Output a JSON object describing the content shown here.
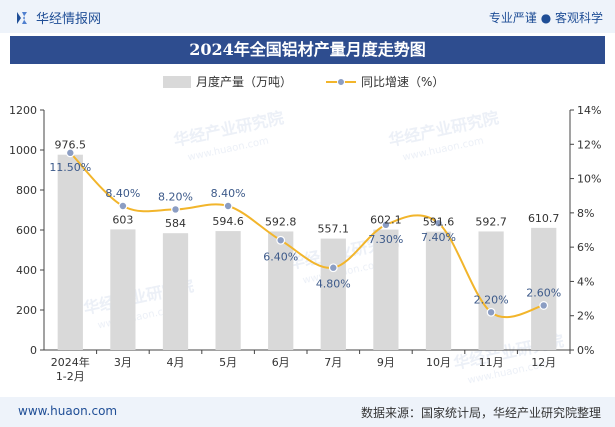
{
  "header": {
    "brand": "华经情报网",
    "slogan": "专业严谨 ● 客观科学"
  },
  "title": "2024年全国铝材产量月度走势图",
  "footer": {
    "website": "www.huaon.com",
    "source": "数据来源：国家统计局，华经产业研究院整理"
  },
  "watermark": {
    "text": "华经产业研究院",
    "url": "www.huaon.com"
  },
  "colors": {
    "bar": "#d9d9d9",
    "line": "#f2b52b",
    "marker": "#8b9dc3",
    "title_bg": "#2e4d8f"
  },
  "chart_data": {
    "type": "bar+line",
    "categories": [
      "2024年\n1-2月",
      "3月",
      "4月",
      "5月",
      "6月",
      "7月",
      "9月",
      "10月",
      "11月",
      "12月"
    ],
    "series": [
      {
        "name": "月度产量（万吨）",
        "type": "bar",
        "axis": "left",
        "values": [
          976.5,
          603,
          584,
          594.6,
          592.8,
          557.1,
          602.1,
          591.6,
          592.7,
          610.7
        ],
        "labels": [
          "976.5",
          "603",
          "584",
          "594.6",
          "592.8",
          "557.1",
          "602.1",
          "591.6",
          "592.7",
          "610.7"
        ]
      },
      {
        "name": "同比增速（%）",
        "type": "line",
        "axis": "right",
        "values": [
          11.5,
          8.4,
          8.2,
          8.4,
          6.4,
          4.8,
          7.3,
          7.4,
          2.2,
          2.6
        ],
        "labels": [
          "11.50%",
          "8.40%",
          "8.20%",
          "8.40%",
          "6.40%",
          "4.80%",
          "7.30%",
          "7.40%",
          "2.20%",
          "2.60%"
        ]
      }
    ],
    "y_left": {
      "min": 0,
      "max": 1200,
      "ticks": [
        "0",
        "200",
        "400",
        "600",
        "800",
        "1000",
        "1200"
      ]
    },
    "y_right": {
      "min": 0,
      "max": 14,
      "ticks": [
        "0%",
        "2%",
        "4%",
        "6%",
        "8%",
        "10%",
        "12%",
        "14%"
      ]
    },
    "grid": false,
    "legend": "top-center"
  }
}
